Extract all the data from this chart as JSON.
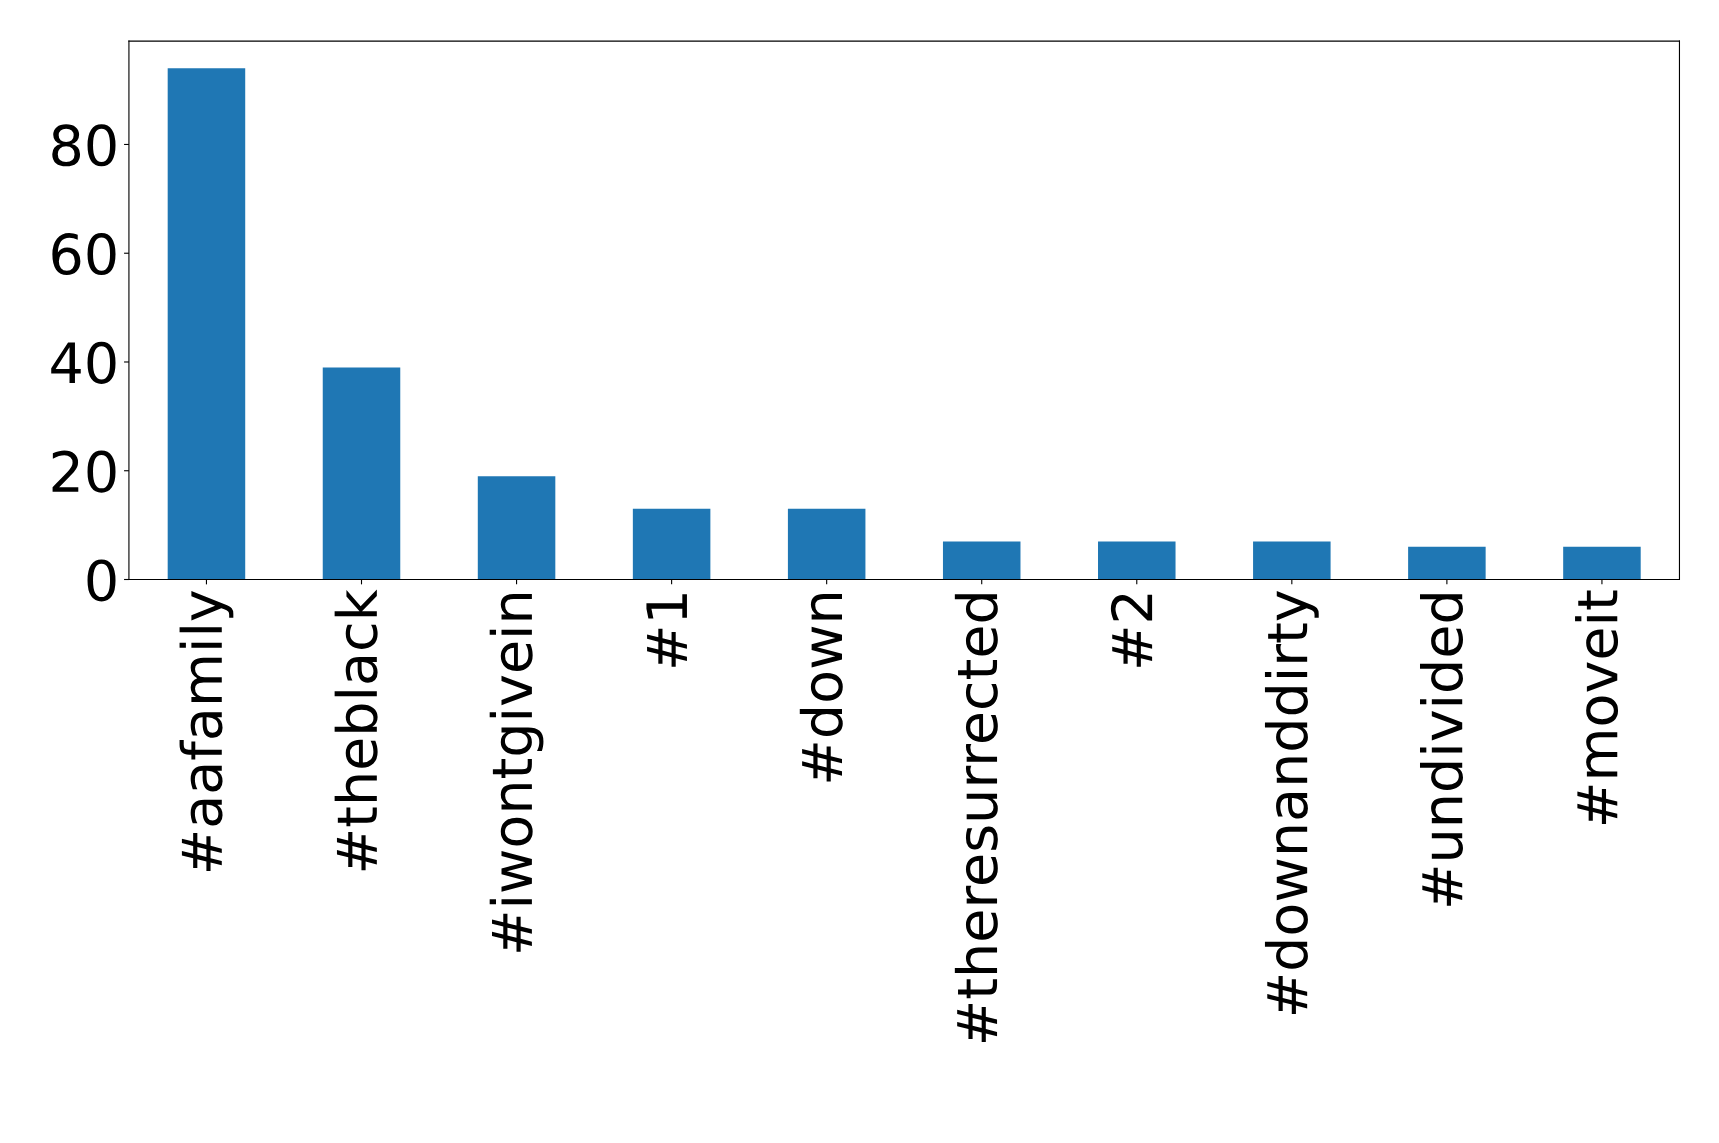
{
  "chart_data": {
    "type": "bar",
    "categories": [
      "#aafamily",
      "#theblack",
      "#iwontgivein",
      "#1",
      "#down",
      "#theresurrected",
      "#2",
      "#downanddirty",
      "#undivided",
      "#moveit"
    ],
    "values": [
      94,
      39,
      19,
      13,
      13,
      7,
      7,
      7,
      6,
      6
    ],
    "color": "#1f77b4",
    "ylim": [
      0,
      99
    ],
    "yticks": [
      0,
      20,
      40,
      60,
      80
    ],
    "grid": false,
    "legend": false
  }
}
